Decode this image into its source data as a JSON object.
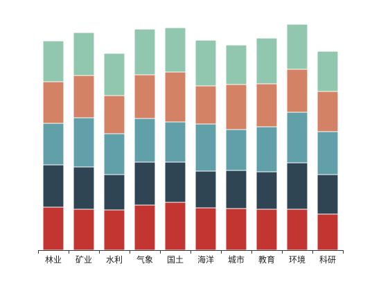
{
  "chart_data": {
    "type": "bar",
    "stacked": true,
    "title": "",
    "xlabel": "",
    "ylabel": "",
    "grid": false,
    "legend": "none",
    "y_axis_visible": false,
    "ylim": [
      0,
      330
    ],
    "categories": [
      "林业",
      "矿业",
      "水利",
      "气象",
      "国土",
      "海洋",
      "城市",
      "教育",
      "环境",
      "科研"
    ],
    "series": [
      {
        "color": "#c23531",
        "values": [
          62,
          59,
          58,
          65,
          69,
          61,
          60,
          59,
          59,
          52
        ]
      },
      {
        "color": "#2f4554",
        "values": [
          61,
          61,
          51,
          62,
          58,
          53,
          55,
          54,
          67,
          57
        ]
      },
      {
        "color": "#61a0a8",
        "values": [
          60,
          71,
          59,
          63,
          58,
          68,
          59,
          65,
          73,
          62
        ]
      },
      {
        "color": "#d48265",
        "values": [
          60,
          61,
          55,
          63,
          72,
          55,
          65,
          62,
          62,
          58
        ]
      },
      {
        "color": "#91c7ae",
        "values": [
          59,
          62,
          61,
          66,
          64,
          66,
          57,
          66,
          65,
          58
        ]
      }
    ]
  }
}
